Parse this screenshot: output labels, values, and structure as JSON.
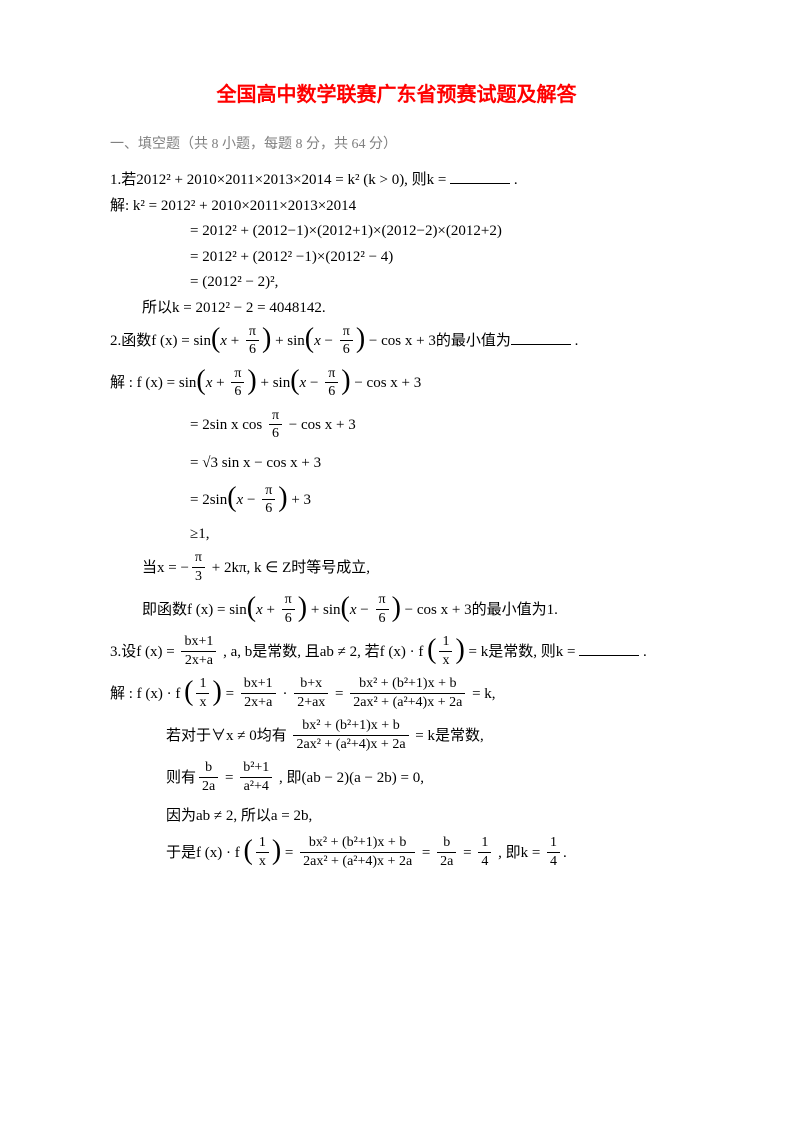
{
  "title": "全国高中数学联赛广东省预赛试题及解答",
  "section_heading": "一、填空题（共 8 小题，每题 8 分，共 64 分）",
  "q1": {
    "stmt": "1.若2012² + 2010×2011×2013×2014 = k² (k > 0), 则k =",
    "sol_label": "解: k² = 2012² + 2010×2011×2013×2014",
    "step1": "= 2012² + (2012−1)×(2012+1)×(2012−2)×(2012+2)",
    "step2": "= 2012² + (2012² −1)×(2012² − 4)",
    "step3": "= (2012² − 2)²,",
    "final": "所以k = 2012² − 2 = 4048142."
  },
  "q2": {
    "stmt_pre": "2.函数f (x) = sin",
    "stmt_mid1": " + sin",
    "stmt_mid2": " − cos x + 3的最小值为",
    "sol_pre": "解 : f (x) = sin",
    "sol_mid1": " + sin",
    "sol_mid2": " − cos x + 3",
    "step1_pre": "= 2sin x cos",
    "step1_post": " − cos x + 3",
    "step2": "= √3 sin x − cos x + 3",
    "step3_pre": "= 2sin",
    "step3_post": " + 3",
    "step4": "≥1,",
    "cond_pre": "当x = −",
    "cond_post": " + 2kπ, k ∈ Z时等号成立,",
    "final_pre": "即函数f (x) = sin",
    "final_mid1": " + sin",
    "final_mid2": " − cos x + 3的最小值为1."
  },
  "q3": {
    "stmt_pre": "3.设f (x) = ",
    "stmt_mid": " , a, b是常数, 且ab ≠ 2, 若f (x) · f ",
    "stmt_post": " = k是常数, 则k = ",
    "sol_pre": "解 : f (x) · f ",
    "sol_mid1": " = ",
    "sol_mid2": " · ",
    "sol_mid3": " = ",
    "sol_post": " = k,",
    "cond_pre": "若对于∀x ≠ 0均有 ",
    "cond_post": " = k是常数,",
    "then_pre": "则有",
    "then_mid": " = ",
    "then_post": " , 即(ab − 2)(a − 2b) = 0,",
    "because": "因为ab ≠ 2, 所以a = 2b,",
    "final_pre": "于是f (x) · f ",
    "final_mid1": " = ",
    "final_mid2": " = ",
    "final_mid3": " = ",
    "final_post": " , 即k = "
  },
  "fracs": {
    "pi6": {
      "num": "π",
      "den": "6"
    },
    "pi3": {
      "num": "π",
      "den": "3"
    },
    "bx1_2xa": {
      "num": "bx+1",
      "den": "2x+a"
    },
    "bx_2ax": {
      "num": "b+x",
      "den": "2+ax"
    },
    "big1": {
      "num": "bx² + (b²+1)x + b",
      "den": "2ax² + (a²+4)x + 2a"
    },
    "b2a": {
      "num": "b",
      "den": "2a"
    },
    "b21_a24": {
      "num": "b²+1",
      "den": "a²+4"
    },
    "14": {
      "num": "1",
      "den": "4"
    },
    "1x": {
      "num": "1",
      "den": "x"
    }
  }
}
